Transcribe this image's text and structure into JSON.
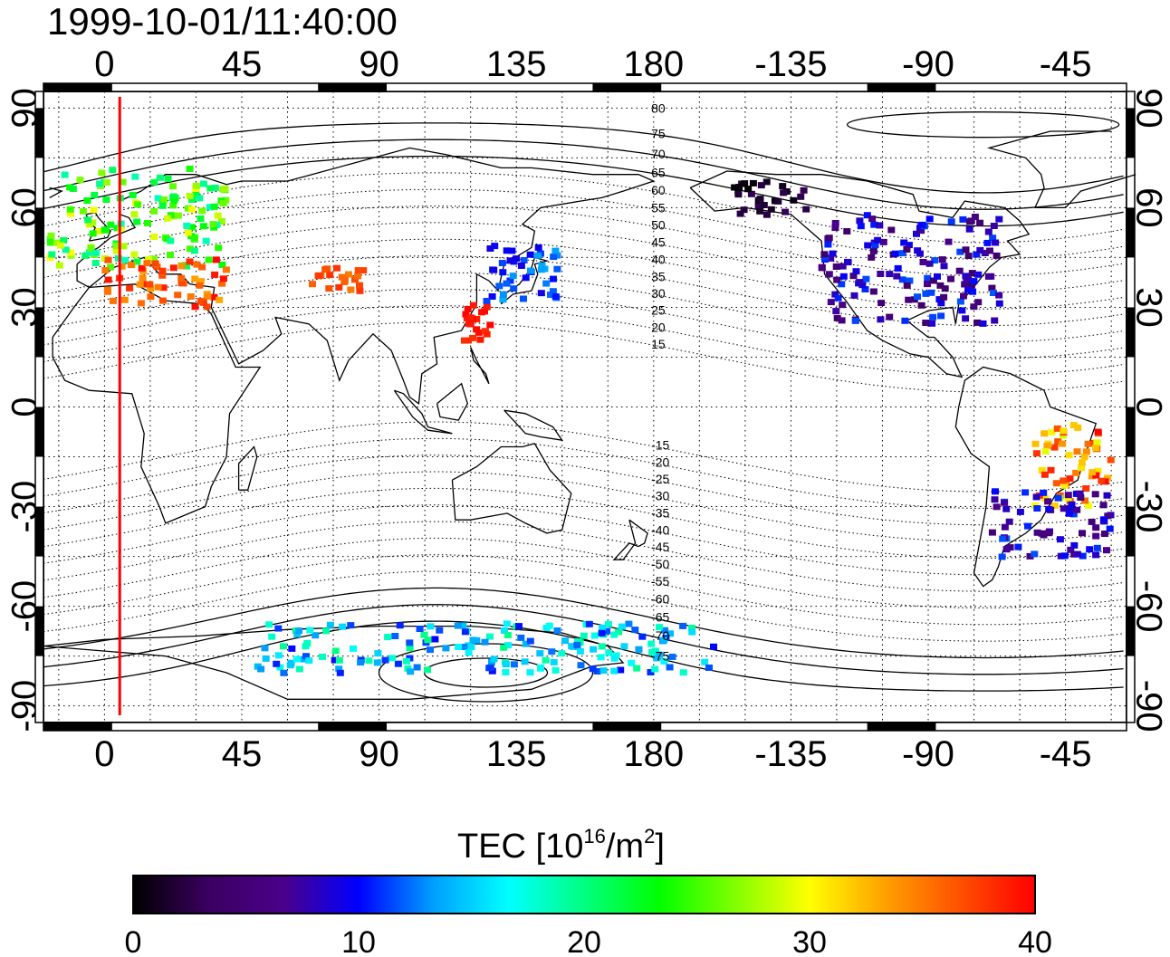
{
  "header": {
    "timestamp": "1999-10-01/11:40:00"
  },
  "axes": {
    "lon_ticks_top": [
      "0",
      "45",
      "90",
      "135",
      "180",
      "-135",
      "-90",
      "-45"
    ],
    "lon_ticks_bottom": [
      "0",
      "45",
      "90",
      "135",
      "180",
      "-135",
      "-90",
      "-45"
    ],
    "lat_ticks_left": [
      "90",
      "60",
      "30",
      "0",
      "-30",
      "-60",
      "-90"
    ],
    "lat_ticks_right": [
      "90",
      "60",
      "30",
      "0",
      "-30",
      "-60",
      "-90"
    ]
  },
  "contour_labels": [
    "80",
    "75",
    "70",
    "65",
    "60",
    "55",
    "50",
    "45",
    "40",
    "35",
    "30",
    "25",
    "20",
    "15",
    "-15",
    "-20",
    "-25",
    "-30",
    "-35",
    "-40",
    "-45",
    "-50",
    "-55",
    "-60",
    "-65",
    "-70",
    "-75"
  ],
  "colorbar": {
    "title_main": "TEC  [10",
    "title_sup1": "16",
    "title_mid": "/m",
    "title_sup2": "2",
    "title_end": "]",
    "ticks": [
      "0",
      "10",
      "20",
      "30",
      "40"
    ],
    "min": 0,
    "max": 40
  },
  "colors": {
    "terminator": "#ff0000",
    "coast": "#000000",
    "colormap": [
      "#000000",
      "#3a0060",
      "#4b008a",
      "#0000ff",
      "#00a0ff",
      "#00ffff",
      "#00ff80",
      "#00ff00",
      "#80ff00",
      "#ffff00",
      "#ffa000",
      "#ff5000",
      "#ff0000"
    ]
  },
  "map_data": {
    "projection": "equirectangular",
    "lon_range": [
      -20,
      335
    ],
    "lat_range": [
      -95,
      95
    ],
    "terminator_lon": 5,
    "observation_clusters": [
      {
        "region": "Europe",
        "lon": [
          -18,
          40
        ],
        "lat": [
          42,
          72
        ],
        "tec": [
          18,
          30
        ]
      },
      {
        "region": "Mediterranean",
        "lon": [
          0,
          40
        ],
        "lat": [
          30,
          45
        ],
        "tec": [
          33,
          40
        ]
      },
      {
        "region": "Central Asia",
        "lon": [
          68,
          85
        ],
        "lat": [
          35,
          42
        ],
        "tec": [
          34,
          38
        ]
      },
      {
        "region": "Japan",
        "lon": [
          125,
          150
        ],
        "lat": [
          32,
          50
        ],
        "tec": [
          9,
          14
        ]
      },
      {
        "region": "Taiwan",
        "lon": [
          118,
          128
        ],
        "lat": [
          20,
          32
        ],
        "tec": [
          38,
          40
        ]
      },
      {
        "region": "North America",
        "lon": [
          235,
          295
        ],
        "lat": [
          25,
          58
        ],
        "tec": [
          4,
          12
        ]
      },
      {
        "region": "Alaska",
        "lon": [
          205,
          230
        ],
        "lat": [
          58,
          68
        ],
        "tec": [
          0,
          3
        ]
      },
      {
        "region": "Brazil",
        "lon": [
          305,
          330
        ],
        "lat": [
          -30,
          -5
        ],
        "tec": [
          28,
          40
        ]
      },
      {
        "region": "Argentina",
        "lon": [
          290,
          330
        ],
        "lat": [
          -45,
          -25
        ],
        "tec": [
          5,
          12
        ]
      },
      {
        "region": "Southern Ocean",
        "lon": [
          50,
          200
        ],
        "lat": [
          -80,
          -65
        ],
        "tec": [
          10,
          20
        ]
      }
    ]
  }
}
